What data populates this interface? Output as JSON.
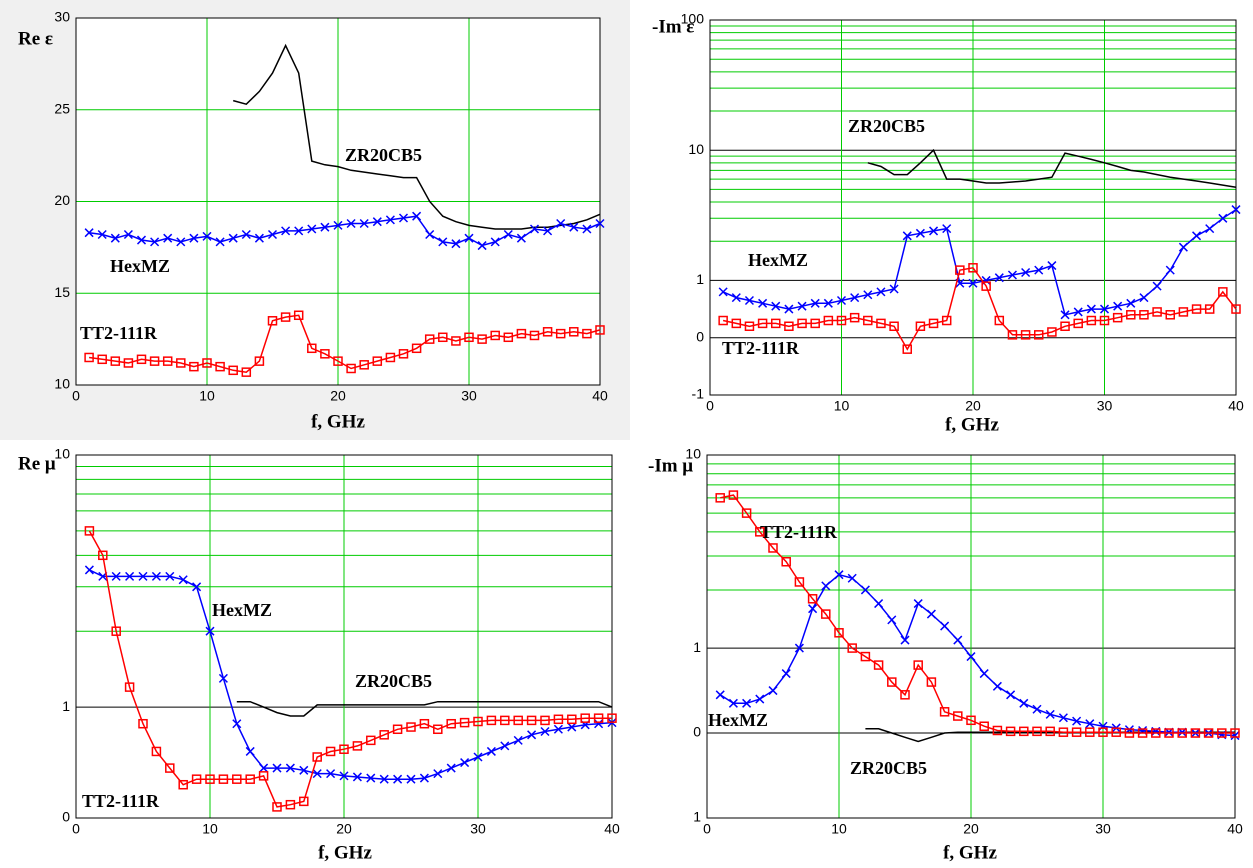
{
  "chart_data": [
    {
      "type": "line",
      "y_label": "Re ε",
      "x_label": "f, GHz",
      "xlim": [
        0,
        40
      ],
      "xticks": [
        0,
        10,
        20,
        30,
        40
      ],
      "ylim": [
        10,
        30
      ],
      "yticks": [
        10,
        15,
        20,
        25,
        30
      ],
      "yscale": "linear",
      "grid": true,
      "x": [
        1,
        2,
        3,
        4,
        5,
        6,
        7,
        8,
        9,
        10,
        11,
        12,
        13,
        14,
        15,
        16,
        17,
        18,
        19,
        20,
        21,
        22,
        23,
        24,
        25,
        26,
        27,
        28,
        29,
        30,
        31,
        32,
        33,
        34,
        35,
        36,
        37,
        38,
        39,
        40
      ],
      "series": [
        {
          "name": "ZR20CB5",
          "color": "#000000",
          "marker": "none",
          "values": [
            null,
            null,
            null,
            null,
            null,
            null,
            null,
            null,
            null,
            null,
            null,
            25.5,
            25.3,
            26,
            27,
            28.5,
            27,
            22.2,
            22,
            21.9,
            21.7,
            21.6,
            21.5,
            21.4,
            21.3,
            21.3,
            20,
            19.2,
            18.9,
            18.7,
            18.6,
            18.5,
            18.5,
            18.5,
            18.6,
            18.6,
            18.7,
            18.8,
            19,
            19.3
          ]
        },
        {
          "name": "HexMZ",
          "color": "#0000ff",
          "marker": "x",
          "values": [
            18.3,
            18.2,
            18,
            18.2,
            17.9,
            17.8,
            18,
            17.8,
            18,
            18.1,
            17.8,
            18,
            18.2,
            18,
            18.2,
            18.4,
            18.4,
            18.5,
            18.6,
            18.7,
            18.8,
            18.8,
            18.9,
            19,
            19.1,
            19.2,
            18.2,
            17.8,
            17.7,
            18,
            17.6,
            17.8,
            18.2,
            18,
            18.5,
            18.4,
            18.8,
            18.6,
            18.5,
            18.8
          ]
        },
        {
          "name": "TT2-111R",
          "color": "#ff0000",
          "marker": "square",
          "values": [
            11.5,
            11.4,
            11.3,
            11.2,
            11.4,
            11.3,
            11.3,
            11.2,
            11,
            11.2,
            11,
            10.8,
            10.7,
            11.3,
            13.5,
            13.7,
            13.8,
            12,
            11.7,
            11.3,
            10.9,
            11.1,
            11.3,
            11.5,
            11.7,
            12,
            12.5,
            12.6,
            12.4,
            12.6,
            12.5,
            12.7,
            12.6,
            12.8,
            12.7,
            12.9,
            12.8,
            12.9,
            12.8,
            13
          ]
        }
      ]
    },
    {
      "type": "line",
      "y_label": "-Im ε",
      "x_label": "f, GHz",
      "xlim": [
        0,
        40
      ],
      "xticks": [
        0,
        10,
        20,
        30,
        40
      ],
      "ylim": [
        -1,
        100
      ],
      "yticks": [
        -1,
        0,
        1,
        10,
        100
      ],
      "yminor": [
        2,
        3,
        4,
        5,
        6,
        7,
        8,
        9,
        20,
        30,
        40,
        50,
        60,
        70,
        80,
        90
      ],
      "yscale": "symlog",
      "grid": true,
      "x": [
        1,
        2,
        3,
        4,
        5,
        6,
        7,
        8,
        9,
        10,
        11,
        12,
        13,
        14,
        15,
        16,
        17,
        18,
        19,
        20,
        21,
        22,
        23,
        24,
        25,
        26,
        27,
        28,
        29,
        30,
        31,
        32,
        33,
        34,
        35,
        36,
        37,
        38,
        39,
        40
      ],
      "series": [
        {
          "name": "ZR20CB5",
          "color": "#000000",
          "marker": "none",
          "values": [
            null,
            null,
            null,
            null,
            null,
            null,
            null,
            null,
            null,
            null,
            null,
            8,
            7.5,
            6.5,
            6.5,
            8,
            10,
            6,
            6,
            5.8,
            5.6,
            5.6,
            5.7,
            5.8,
            6,
            6.2,
            9.5,
            9,
            8.5,
            8,
            7.5,
            7,
            6.8,
            6.5,
            6.2,
            6,
            5.8,
            5.6,
            5.4,
            5.2
          ]
        },
        {
          "name": "HexMZ",
          "color": "#0000ff",
          "marker": "x",
          "values": [
            0.8,
            0.7,
            0.65,
            0.6,
            0.55,
            0.5,
            0.55,
            0.6,
            0.6,
            0.65,
            0.7,
            0.75,
            0.8,
            0.85,
            2.2,
            2.3,
            2.4,
            2.5,
            0.95,
            0.95,
            1,
            1.05,
            1.1,
            1.15,
            1.2,
            1.3,
            0.4,
            0.45,
            0.5,
            0.5,
            0.55,
            0.6,
            0.7,
            0.9,
            1.2,
            1.8,
            2.2,
            2.5,
            3,
            3.5
          ]
        },
        {
          "name": "TT2-111R",
          "color": "#ff0000",
          "marker": "square",
          "values": [
            0.3,
            0.25,
            0.2,
            0.25,
            0.25,
            0.2,
            0.25,
            0.25,
            0.3,
            0.3,
            0.35,
            0.3,
            0.25,
            0.2,
            -0.2,
            0.2,
            0.25,
            0.3,
            1.2,
            1.25,
            0.9,
            0.3,
            0.05,
            0.05,
            0.05,
            0.1,
            0.2,
            0.25,
            0.3,
            0.3,
            0.35,
            0.4,
            0.4,
            0.45,
            0.4,
            0.45,
            0.5,
            0.5,
            0.8,
            0.5
          ]
        }
      ]
    },
    {
      "type": "line",
      "y_label": "Re μ",
      "x_label": "f, GHz",
      "xlim": [
        0,
        40
      ],
      "xticks": [
        0,
        10,
        20,
        30,
        40
      ],
      "ylim": [
        0,
        10
      ],
      "yticks": [
        0,
        1,
        10
      ],
      "yminor": [
        2,
        3,
        4,
        5,
        6,
        7,
        8,
        9
      ],
      "yscale": "symlog",
      "grid": true,
      "x": [
        1,
        2,
        3,
        4,
        5,
        6,
        7,
        8,
        9,
        10,
        11,
        12,
        13,
        14,
        15,
        16,
        17,
        18,
        19,
        20,
        21,
        22,
        23,
        24,
        25,
        26,
        27,
        28,
        29,
        30,
        31,
        32,
        33,
        34,
        35,
        36,
        37,
        38,
        39,
        40
      ],
      "series": [
        {
          "name": "ZR20CB5",
          "color": "#000000",
          "marker": "none",
          "values": [
            null,
            null,
            null,
            null,
            null,
            null,
            null,
            null,
            null,
            null,
            null,
            1.05,
            1.05,
            1,
            0.95,
            0.92,
            0.92,
            1.02,
            1.02,
            1.02,
            1.02,
            1.02,
            1.02,
            1.02,
            1.02,
            1.02,
            1.05,
            1.05,
            1.05,
            1.05,
            1.05,
            1.05,
            1.05,
            1.05,
            1.05,
            1.05,
            1.05,
            1.05,
            1.05,
            1
          ]
        },
        {
          "name": "HexMZ",
          "color": "#0000ff",
          "marker": "x",
          "values": [
            3.5,
            3.3,
            3.3,
            3.3,
            3.3,
            3.3,
            3.3,
            3.2,
            3,
            2,
            1.3,
            0.85,
            0.6,
            0.45,
            0.45,
            0.45,
            0.43,
            0.4,
            0.4,
            0.38,
            0.37,
            0.36,
            0.35,
            0.35,
            0.35,
            0.36,
            0.4,
            0.45,
            0.5,
            0.55,
            0.6,
            0.65,
            0.7,
            0.75,
            0.78,
            0.8,
            0.82,
            0.84,
            0.85,
            0.86
          ]
        },
        {
          "name": "TT2-111R",
          "color": "#ff0000",
          "marker": "square",
          "values": [
            5,
            4,
            2,
            1.2,
            0.85,
            0.6,
            0.45,
            0.3,
            0.35,
            0.35,
            0.35,
            0.35,
            0.35,
            0.38,
            0.1,
            0.12,
            0.15,
            0.55,
            0.6,
            0.62,
            0.65,
            0.7,
            0.75,
            0.8,
            0.82,
            0.85,
            0.8,
            0.85,
            0.86,
            0.87,
            0.88,
            0.88,
            0.88,
            0.88,
            0.88,
            0.89,
            0.89,
            0.9,
            0.9,
            0.9
          ]
        }
      ]
    },
    {
      "type": "line",
      "y_label": "-Im μ",
      "x_label": "f, GHz",
      "xlim": [
        0,
        40
      ],
      "xticks": [
        0,
        10,
        20,
        30,
        40
      ],
      "ylim": [
        -1,
        10
      ],
      "yticks": [
        {
          "value": -1,
          "label": "1"
        },
        0,
        1,
        10
      ],
      "yminor": [
        2,
        3,
        4,
        5,
        6,
        7,
        8,
        9
      ],
      "yscale": "symlog",
      "grid": true,
      "x": [
        1,
        2,
        3,
        4,
        5,
        6,
        7,
        8,
        9,
        10,
        11,
        12,
        13,
        14,
        15,
        16,
        17,
        18,
        19,
        20,
        21,
        22,
        23,
        24,
        25,
        26,
        27,
        28,
        29,
        30,
        31,
        32,
        33,
        34,
        35,
        36,
        37,
        38,
        39,
        40
      ],
      "series": [
        {
          "name": "ZR20CB5",
          "color": "#000000",
          "marker": "none",
          "values": [
            null,
            null,
            null,
            null,
            null,
            null,
            null,
            null,
            null,
            null,
            null,
            0.05,
            0.05,
            0,
            -0.05,
            -0.1,
            -0.05,
            0,
            0.01,
            0.01,
            0.01,
            0.01,
            0.01,
            0.01,
            0.01,
            0.01,
            0.01,
            0.01,
            0.01,
            0.01,
            0.01,
            0.01,
            0.01,
            0.01,
            0.01,
            0.01,
            0.01,
            0.01,
            0.01,
            0.01
          ]
        },
        {
          "name": "HexMZ",
          "color": "#0000ff",
          "marker": "x",
          "values": [
            0.45,
            0.35,
            0.35,
            0.4,
            0.5,
            0.7,
            1,
            1.6,
            2.1,
            2.4,
            2.3,
            2,
            1.7,
            1.4,
            1.1,
            1.7,
            1.5,
            1.3,
            1.1,
            0.9,
            0.7,
            0.55,
            0.45,
            0.35,
            0.28,
            0.22,
            0.18,
            0.14,
            0.11,
            0.08,
            0.06,
            0.04,
            0.03,
            0.02,
            0.01,
            0.01,
            0,
            0,
            -0.02,
            -0.03
          ]
        },
        {
          "name": "TT2-111R",
          "color": "#ff0000",
          "marker": "square",
          "values": [
            6,
            6.2,
            5,
            4,
            3.3,
            2.8,
            2.2,
            1.8,
            1.5,
            1.2,
            1,
            0.9,
            0.8,
            0.6,
            0.45,
            0.8,
            0.6,
            0.25,
            0.2,
            0.15,
            0.08,
            0.03,
            0.02,
            0.02,
            0.02,
            0.02,
            0.01,
            0.01,
            0.01,
            0.01,
            0.01,
            0,
            0,
            0,
            0,
            0,
            0,
            0,
            0,
            0
          ]
        }
      ]
    }
  ]
}
